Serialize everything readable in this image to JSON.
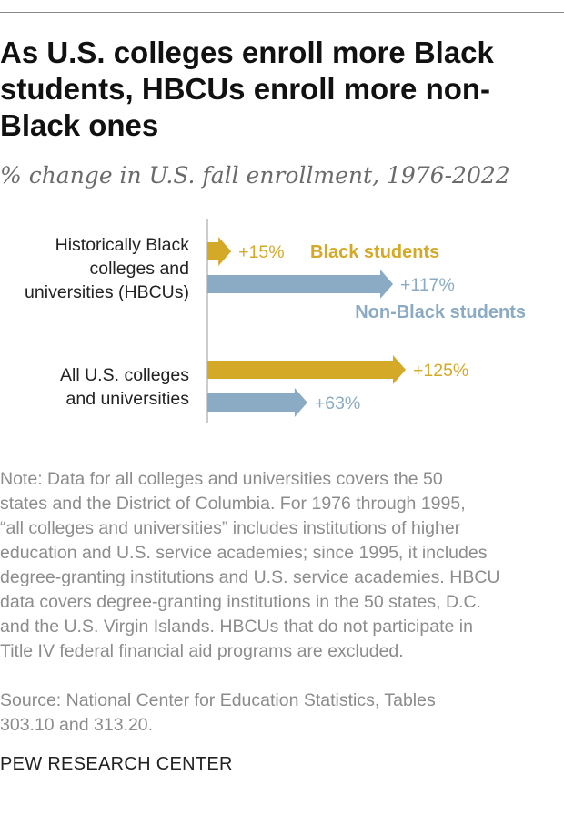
{
  "title": "As U.S. colleges enroll more Black students, HBCUs enroll more non-Black ones",
  "subtitle": "% change in U.S. fall enrollment, 1976-2022",
  "note": "Note: Data for all colleges and universities covers the 50\nstates and the District of Columbia. For 1976 through 1995,\n“all colleges and universities” includes institutions of higher\neducation and U.S. service academies; since 1995, it includes\ndegree-granting institutions and U.S. service academies. HBCU\ndata covers degree-granting institutions in the 50 states, D.C.\nand the U.S. Virgin Islands. HBCUs that do not participate in\nTitle IV federal financial aid programs are excluded.",
  "source": "Source: National Center for Education Statistics, Tables\n303.10 and 313.20.",
  "brand": "PEW RESEARCH CENTER",
  "colors": {
    "black_students": "#d5a928",
    "non_black_students": "#8aabc3",
    "axis": "#9a9a9a",
    "category_text": "#222222"
  },
  "chart_data": {
    "type": "bar",
    "orientation": "horizontal",
    "categories": [
      [
        "Historically Black",
        "colleges and",
        "universities (HBCUs)"
      ],
      [
        "All U.S. colleges",
        "and universities"
      ]
    ],
    "series": [
      {
        "name": "Black students",
        "values": [
          15,
          125
        ],
        "value_labels": [
          "+15%",
          "+125%"
        ]
      },
      {
        "name": "Non-Black students",
        "values": [
          117,
          63
        ],
        "value_labels": [
          "+117%",
          "+63%"
        ]
      }
    ],
    "unit": "%",
    "xlim": [
      0,
      140
    ],
    "grid": false,
    "legend": "direct labels next to HBCU bars"
  }
}
